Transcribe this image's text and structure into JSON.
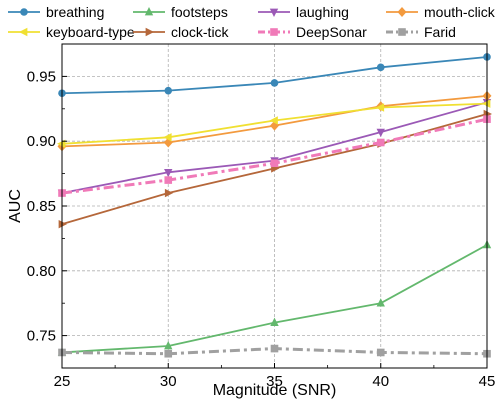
{
  "chart_data": {
    "type": "line",
    "xlabel": "Magnitude (SNR)",
    "ylabel": "AUC",
    "x": [
      25,
      30,
      35,
      40,
      45
    ],
    "xlim": [
      25,
      45
    ],
    "ylim": [
      0.725,
      0.975
    ],
    "xticks": [
      "25",
      "30",
      "35",
      "40",
      "45"
    ],
    "yticks": [
      "0.75",
      "0.80",
      "0.85",
      "0.90",
      "0.95"
    ],
    "grid": true,
    "legend_position": "top",
    "series": [
      {
        "name": "breathing",
        "color": "#3a87b7",
        "marker": "circle",
        "dash": "solid",
        "values": [
          0.937,
          0.939,
          0.945,
          0.957,
          0.965
        ]
      },
      {
        "name": "footsteps",
        "color": "#63b86d",
        "marker": "triangle-up",
        "dash": "solid",
        "values": [
          0.737,
          0.742,
          0.76,
          0.775,
          0.82
        ]
      },
      {
        "name": "laughing",
        "color": "#9b59b6",
        "marker": "triangle-down",
        "dash": "solid",
        "values": [
          0.86,
          0.876,
          0.885,
          0.907,
          0.93
        ]
      },
      {
        "name": "mouth-click",
        "color": "#f39a3e",
        "marker": "diamond",
        "dash": "solid",
        "values": [
          0.896,
          0.899,
          0.912,
          0.927,
          0.935
        ]
      },
      {
        "name": "keyboard-type",
        "color": "#f0e032",
        "marker": "triangle-left",
        "dash": "solid",
        "values": [
          0.898,
          0.903,
          0.916,
          0.926,
          0.929
        ]
      },
      {
        "name": "clock-tick",
        "color": "#b5673a",
        "marker": "triangle-right",
        "dash": "solid",
        "values": [
          0.836,
          0.86,
          0.879,
          0.898,
          0.921
        ]
      },
      {
        "name": "DeepSonar",
        "color": "#f07ab8",
        "marker": "square",
        "dash": "dashdot",
        "values": [
          0.86,
          0.87,
          0.883,
          0.899,
          0.917
        ]
      },
      {
        "name": "Farid",
        "color": "#a0a0a0",
        "marker": "square",
        "dash": "dashdot",
        "values": [
          0.737,
          0.736,
          0.74,
          0.737,
          0.736
        ]
      }
    ]
  }
}
